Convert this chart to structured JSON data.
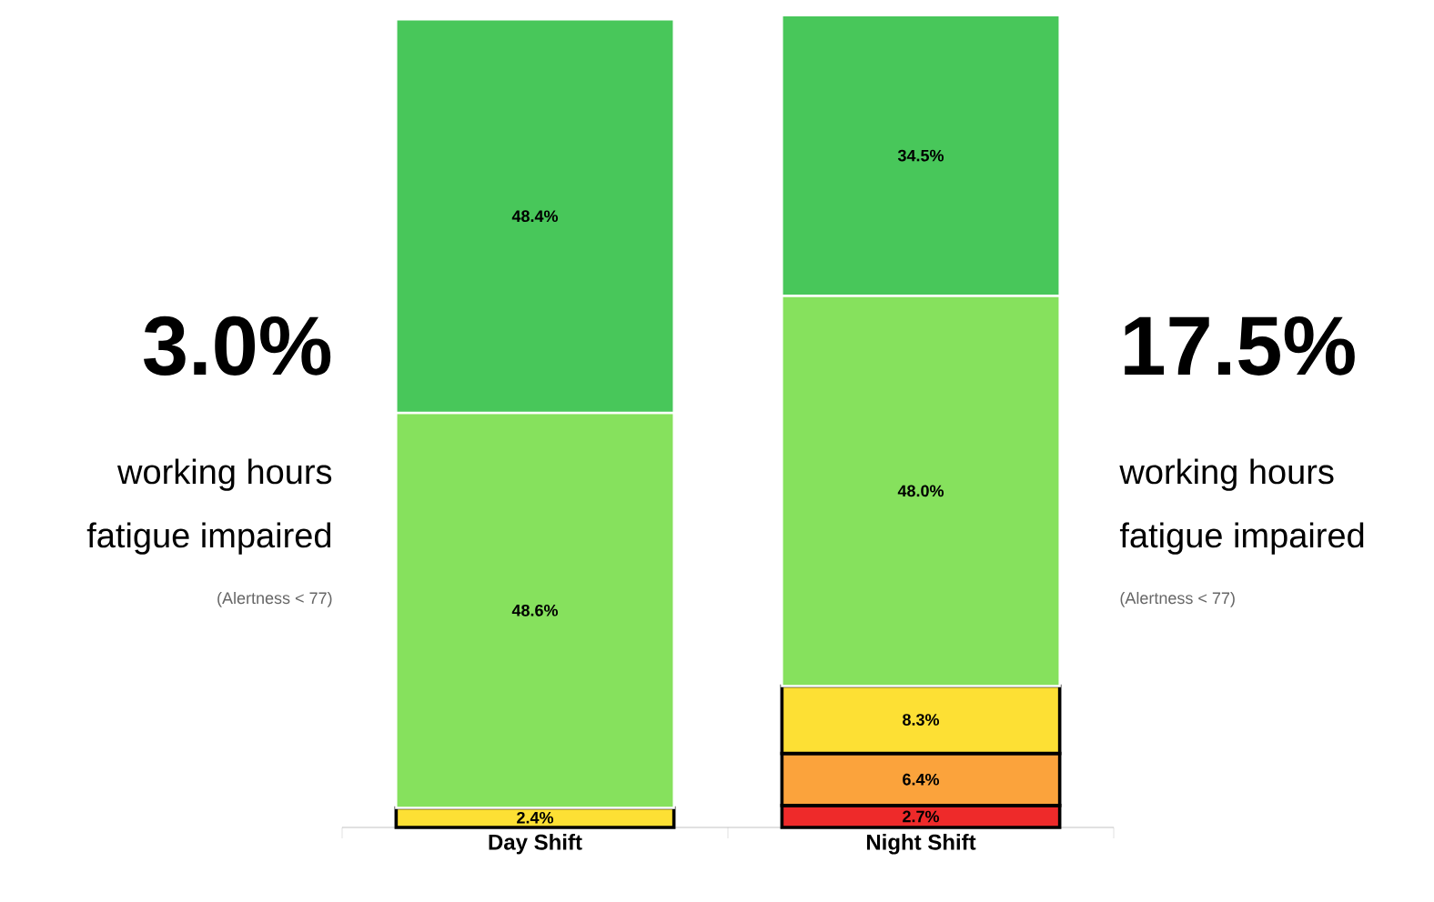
{
  "chart_data": {
    "type": "bar",
    "stacked": true,
    "categories": [
      "Day Shift",
      "Night Shift"
    ],
    "series": [
      {
        "color": "#ee2a2a",
        "values": [
          null,
          2.7
        ],
        "value_labels": [
          null,
          "2.7%"
        ]
      },
      {
        "color": "#fba33c",
        "values": [
          null,
          6.4
        ],
        "value_labels": [
          null,
          "6.4%"
        ]
      },
      {
        "color": "#fde034",
        "values": [
          2.4,
          8.3
        ],
        "value_labels": [
          "2.4%",
          "8.3%"
        ]
      },
      {
        "color": "#86e15d",
        "values": [
          48.6,
          48.0
        ],
        "value_labels": [
          "48.6%",
          "48.0%"
        ]
      },
      {
        "color": "#48c75a",
        "values": [
          48.4,
          34.5
        ],
        "value_labels": [
          "48.4%",
          "34.5%"
        ]
      }
    ],
    "ylim": [
      0,
      100
    ],
    "tick_labels": "x",
    "annotations": [
      "3.0%",
      "working hours",
      "fatigue impaired",
      "(Alertness < 77)",
      "17.5%",
      "working hours",
      "fatigue impaired",
      "(Alertness < 77)"
    ]
  }
}
